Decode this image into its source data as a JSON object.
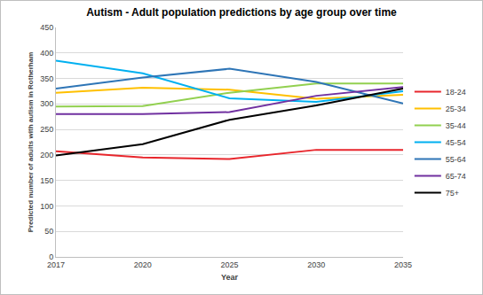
{
  "chart_data": {
    "type": "line",
    "title": "Autism - Adult population predictions by age group over time",
    "x_label": "Year",
    "y_label": "Predicted number of adults with autism in Rotherham",
    "categories": [
      "2017",
      "2020",
      "2025",
      "2030",
      "2035"
    ],
    "series": [
      {
        "name": "18-24",
        "color": "#e8262c",
        "values": [
          207,
          195,
          192,
          210,
          210
        ]
      },
      {
        "name": "25-34",
        "color": "#ffc000",
        "values": [
          322,
          332,
          328,
          310,
          318
        ]
      },
      {
        "name": "35-44",
        "color": "#92d050",
        "values": [
          295,
          296,
          322,
          340,
          340
        ]
      },
      {
        "name": "45-54",
        "color": "#00b0f0",
        "values": [
          385,
          360,
          311,
          304,
          325
        ]
      },
      {
        "name": "55-64",
        "color": "#2e75b6",
        "values": [
          330,
          352,
          369,
          343,
          301
        ]
      },
      {
        "name": "65-74",
        "color": "#7030a0",
        "values": [
          280,
          280,
          284,
          316,
          333
        ]
      },
      {
        "name": "75+",
        "color": "#000000",
        "values": [
          199,
          221,
          269,
          297,
          330
        ]
      }
    ],
    "ylim": [
      0,
      450
    ],
    "yticks": [
      0,
      50,
      100,
      150,
      200,
      250,
      300,
      350,
      400,
      450
    ],
    "grid": true,
    "legend": "right"
  }
}
